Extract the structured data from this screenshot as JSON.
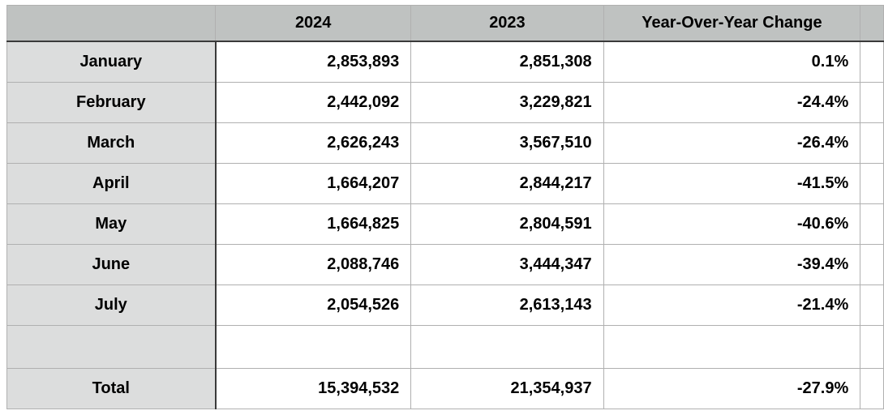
{
  "table": {
    "columns": [
      "",
      "2024",
      "2023",
      "Year-Over-Year Change"
    ],
    "rows": [
      {
        "type": "month",
        "label": "January",
        "y2024": "2,853,893",
        "y2023": "2,851,308",
        "yoy": "0.1%"
      },
      {
        "type": "month",
        "label": "February",
        "y2024": "2,442,092",
        "y2023": "3,229,821",
        "yoy": "-24.4%"
      },
      {
        "type": "month",
        "label": "March",
        "y2024": "2,626,243",
        "y2023": "3,567,510",
        "yoy": "-26.4%"
      },
      {
        "type": "month",
        "label": "April",
        "y2024": "1,664,207",
        "y2023": "2,844,217",
        "yoy": "-41.5%"
      },
      {
        "type": "month",
        "label": "May",
        "y2024": "1,664,825",
        "y2023": "2,804,591",
        "yoy": "-40.6%"
      },
      {
        "type": "month",
        "label": "June",
        "y2024": "2,088,746",
        "y2023": "3,444,347",
        "yoy": "-39.4%"
      },
      {
        "type": "month",
        "label": "July",
        "y2024": "2,054,526",
        "y2023": "2,613,143",
        "yoy": "-21.4%"
      },
      {
        "type": "spacer",
        "label": "",
        "y2024": "",
        "y2023": "",
        "yoy": ""
      },
      {
        "type": "total",
        "label": "Total",
        "y2024": "15,394,532",
        "y2023": "21,354,937",
        "yoy": "-27.9%"
      }
    ]
  },
  "chart_data": {
    "type": "table",
    "categories": [
      "January",
      "February",
      "March",
      "April",
      "May",
      "June",
      "July",
      "Total"
    ],
    "series": [
      {
        "name": "2024",
        "values": [
          2853893,
          2442092,
          2626243,
          1664207,
          1664825,
          2088746,
          2054526,
          15394532
        ]
      },
      {
        "name": "2023",
        "values": [
          2851308,
          3229821,
          3567510,
          2844217,
          2804591,
          3444347,
          2613143,
          21354937
        ]
      },
      {
        "name": "Year-Over-Year Change",
        "values": [
          "0.1%",
          "-24.4%",
          "-26.4%",
          "-41.5%",
          "-40.6%",
          "-39.4%",
          "-21.4%",
          "-27.9%"
        ]
      }
    ]
  },
  "colors": {
    "header_bg": "#bfc2c1",
    "label_column_bg": "#dcdddd",
    "cell_bg": "#ffffff",
    "dark_border": "#3a3a3a",
    "light_border": "#b0b0b0",
    "text": "#000000"
  }
}
